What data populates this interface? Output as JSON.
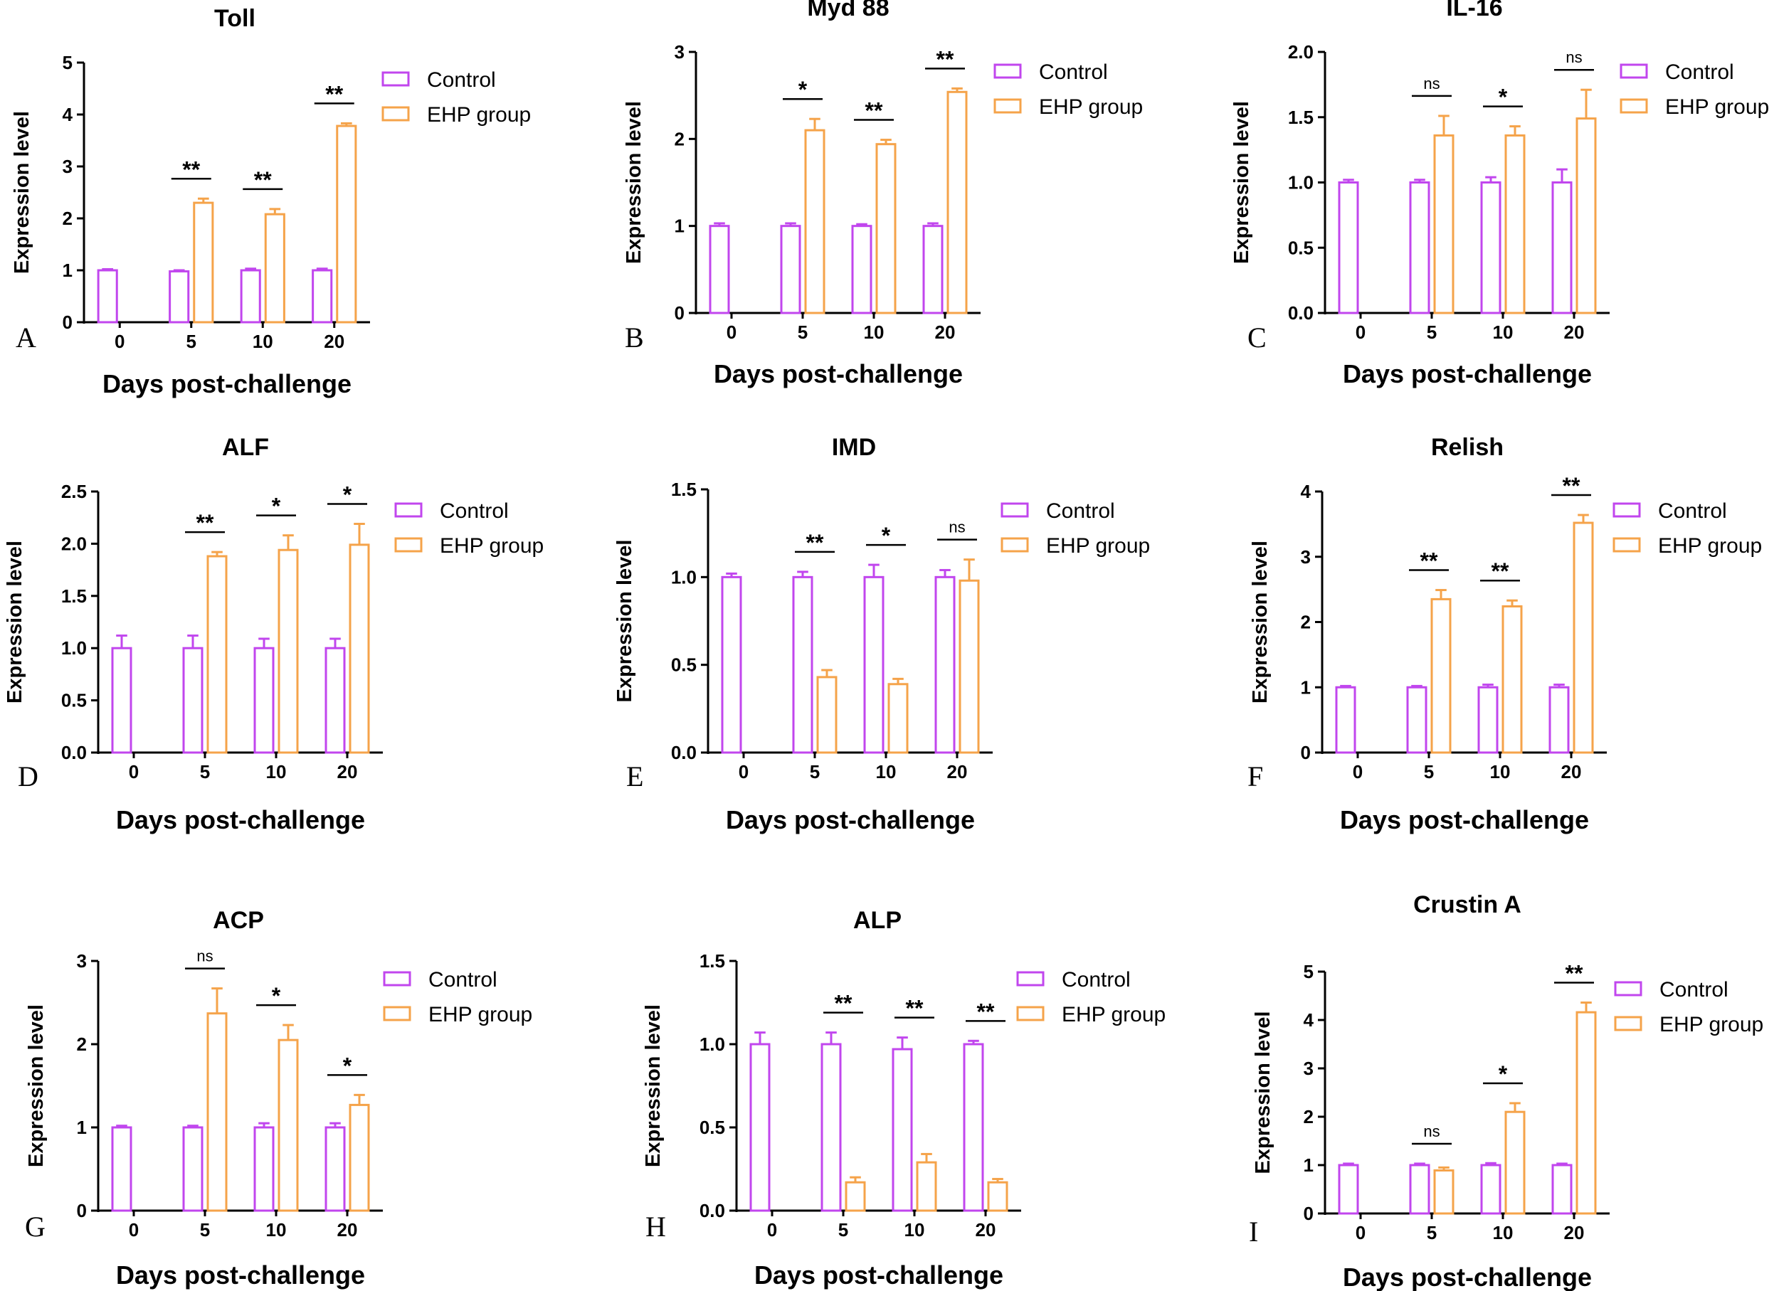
{
  "figure": {
    "xlabel": "Days post-challenge",
    "ylabel": "Expression level",
    "categories": [
      "0",
      "5",
      "10",
      "20"
    ],
    "legend": [
      "Control",
      "EHP group"
    ],
    "colors": {
      "control": "#c146ee",
      "ehp": "#f5a34a",
      "axis": "#000000"
    }
  },
  "chart_data": [
    {
      "type": "bar",
      "panel": "A",
      "title": "Toll",
      "ylim": [
        0,
        5
      ],
      "yticks": [
        "0",
        "1",
        "2",
        "3",
        "4",
        "5"
      ],
      "categories": [
        "0",
        "5",
        "10",
        "20"
      ],
      "series": [
        {
          "name": "Control",
          "values": [
            1.0,
            0.98,
            1.0,
            1.0
          ],
          "errors": [
            0.02,
            0.02,
            0.03,
            0.03
          ]
        },
        {
          "name": "EHP group",
          "values": [
            null,
            2.3,
            2.08,
            3.78
          ],
          "errors": [
            null,
            0.08,
            0.1,
            0.05
          ]
        }
      ],
      "significance": [
        null,
        "**",
        "**",
        "**"
      ]
    },
    {
      "type": "bar",
      "panel": "B",
      "title": "Myd 88",
      "ylim": [
        0,
        3
      ],
      "yticks": [
        "0",
        "1",
        "2",
        "3"
      ],
      "categories": [
        "0",
        "5",
        "10",
        "20"
      ],
      "series": [
        {
          "name": "Control",
          "values": [
            1.0,
            1.0,
            1.0,
            1.0
          ],
          "errors": [
            0.03,
            0.03,
            0.02,
            0.03
          ]
        },
        {
          "name": "EHP group",
          "values": [
            null,
            2.1,
            1.94,
            2.54
          ],
          "errors": [
            null,
            0.13,
            0.05,
            0.04
          ]
        }
      ],
      "significance": [
        null,
        "*",
        "**",
        "**"
      ]
    },
    {
      "type": "bar",
      "panel": "C",
      "title": "IL-16",
      "ylim": [
        0,
        2.0
      ],
      "yticks": [
        "0.0",
        "0.5",
        "1.0",
        "1.5",
        "2.0"
      ],
      "categories": [
        "0",
        "5",
        "10",
        "20"
      ],
      "series": [
        {
          "name": "Control",
          "values": [
            1.0,
            1.0,
            1.0,
            1.0
          ],
          "errors": [
            0.02,
            0.02,
            0.04,
            0.1
          ]
        },
        {
          "name": "EHP group",
          "values": [
            null,
            1.36,
            1.36,
            1.49
          ],
          "errors": [
            null,
            0.15,
            0.07,
            0.22
          ]
        }
      ],
      "significance": [
        null,
        "ns",
        "*",
        "ns"
      ]
    },
    {
      "type": "bar",
      "panel": "D",
      "title": "ALF",
      "ylim": [
        0,
        2.5
      ],
      "yticks": [
        "0.0",
        "0.5",
        "1.0",
        "1.5",
        "2.0",
        "2.5"
      ],
      "categories": [
        "0",
        "5",
        "10",
        "20"
      ],
      "series": [
        {
          "name": "Control",
          "values": [
            1.0,
            1.0,
            1.0,
            1.0
          ],
          "errors": [
            0.12,
            0.12,
            0.09,
            0.09
          ]
        },
        {
          "name": "EHP group",
          "values": [
            null,
            1.88,
            1.94,
            1.99
          ],
          "errors": [
            null,
            0.04,
            0.14,
            0.2
          ]
        }
      ],
      "significance": [
        null,
        "**",
        "*",
        "*"
      ]
    },
    {
      "type": "bar",
      "panel": "E",
      "title": "IMD",
      "ylim": [
        0,
        1.5
      ],
      "yticks": [
        "0.0",
        "0.5",
        "1.0",
        "1.5"
      ],
      "categories": [
        "0",
        "5",
        "10",
        "20"
      ],
      "series": [
        {
          "name": "Control",
          "values": [
            1.0,
            1.0,
            1.0,
            1.0
          ],
          "errors": [
            0.02,
            0.03,
            0.07,
            0.04
          ]
        },
        {
          "name": "EHP group",
          "values": [
            null,
            0.43,
            0.39,
            0.98
          ],
          "errors": [
            null,
            0.04,
            0.03,
            0.12
          ]
        }
      ],
      "significance": [
        null,
        "**",
        "*",
        "ns"
      ]
    },
    {
      "type": "bar",
      "panel": "F",
      "title": "Relish",
      "ylim": [
        0,
        4
      ],
      "yticks": [
        "0",
        "1",
        "2",
        "3",
        "4"
      ],
      "categories": [
        "0",
        "5",
        "10",
        "20"
      ],
      "series": [
        {
          "name": "Control",
          "values": [
            1.0,
            1.0,
            1.0,
            1.0
          ],
          "errors": [
            0.02,
            0.02,
            0.04,
            0.04
          ]
        },
        {
          "name": "EHP group",
          "values": [
            null,
            2.35,
            2.24,
            3.52
          ],
          "errors": [
            null,
            0.14,
            0.09,
            0.12
          ]
        }
      ],
      "significance": [
        null,
        "**",
        "**",
        "**"
      ]
    },
    {
      "type": "bar",
      "panel": "G",
      "title": "ACP",
      "ylim": [
        0,
        3
      ],
      "yticks": [
        "0",
        "1",
        "2",
        "3"
      ],
      "categories": [
        "0",
        "5",
        "10",
        "20"
      ],
      "series": [
        {
          "name": "Control",
          "values": [
            1.0,
            1.0,
            1.0,
            1.0
          ],
          "errors": [
            0.02,
            0.02,
            0.05,
            0.05
          ]
        },
        {
          "name": "EHP group",
          "values": [
            null,
            2.37,
            2.05,
            1.27
          ],
          "errors": [
            null,
            0.3,
            0.18,
            0.12
          ]
        }
      ],
      "significance": [
        null,
        "ns",
        "*",
        "*"
      ]
    },
    {
      "type": "bar",
      "panel": "H",
      "title": "ALP",
      "ylim": [
        0,
        1.5
      ],
      "yticks": [
        "0.0",
        "0.5",
        "1.0",
        "1.5"
      ],
      "categories": [
        "0",
        "5",
        "10",
        "20"
      ],
      "series": [
        {
          "name": "Control",
          "values": [
            1.0,
            1.0,
            0.97,
            1.0
          ],
          "errors": [
            0.07,
            0.07,
            0.07,
            0.02
          ]
        },
        {
          "name": "EHP group",
          "values": [
            null,
            0.17,
            0.29,
            0.17
          ],
          "errors": [
            null,
            0.03,
            0.05,
            0.02
          ]
        }
      ],
      "significance": [
        null,
        "**",
        "**",
        "**"
      ]
    },
    {
      "type": "bar",
      "panel": "I",
      "title": "Crustin A",
      "ylim": [
        0,
        5
      ],
      "yticks": [
        "0",
        "1",
        "2",
        "3",
        "4",
        "5"
      ],
      "categories": [
        "0",
        "5",
        "10",
        "20"
      ],
      "series": [
        {
          "name": "Control",
          "values": [
            1.0,
            1.0,
            1.0,
            1.0
          ],
          "errors": [
            0.03,
            0.03,
            0.04,
            0.03
          ]
        },
        {
          "name": "EHP group",
          "values": [
            null,
            0.89,
            2.1,
            4.16
          ],
          "errors": [
            null,
            0.06,
            0.18,
            0.2
          ]
        }
      ],
      "significance": [
        null,
        "ns",
        "*",
        "**"
      ]
    }
  ]
}
